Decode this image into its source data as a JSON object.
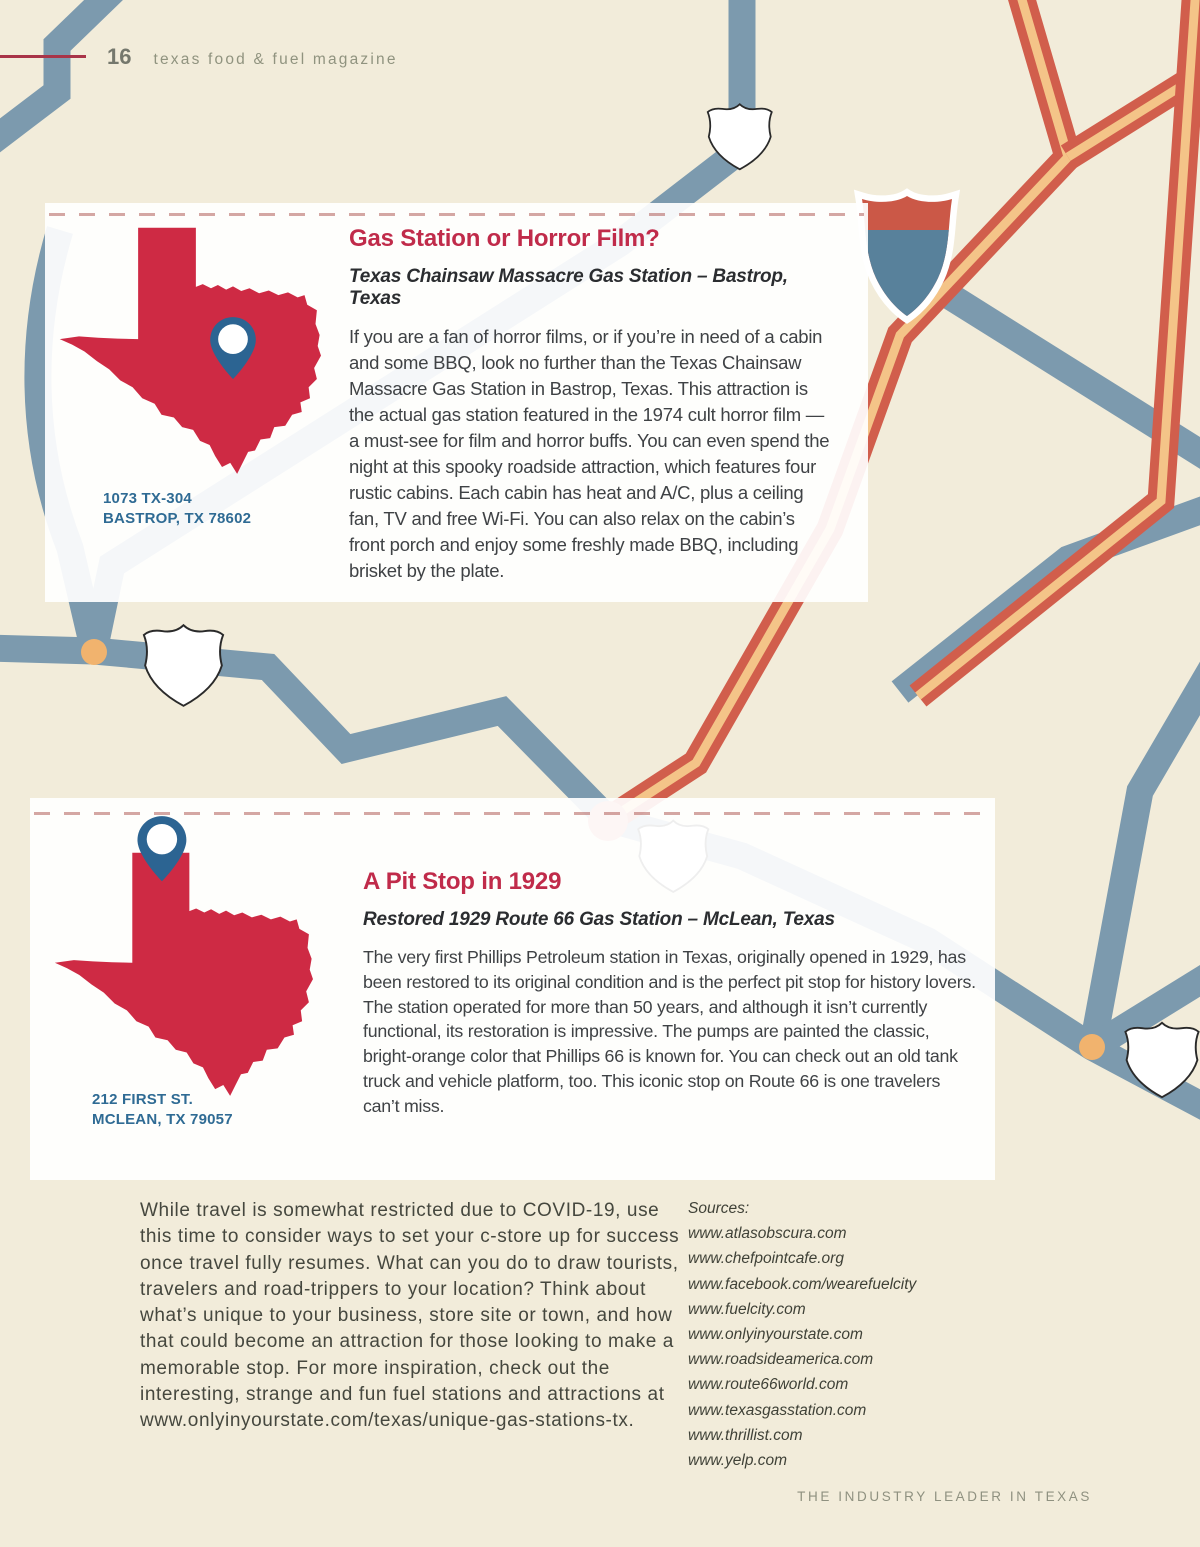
{
  "page": {
    "number": "16",
    "magazine": "texas food & fuel magazine",
    "footer": "THE INDUSTRY LEADER IN TEXAS"
  },
  "cards": [
    {
      "title": "Gas Station or Horror Film?",
      "subtitle": "Texas Chainsaw Massacre Gas Station – Bastrop, Texas",
      "address_line1": "1073 TX-304",
      "address_line2": "BASTROP, TX 78602",
      "body": "If you are a fan of horror films, or if you’re in need of a cabin and some BBQ, look no further than the Texas Chainsaw Massacre Gas Station in Bastrop, Texas. This attraction is the actual gas station featured in the 1974 cult horror film — a must-see for film and horror buffs. You can even spend the night at this spooky roadside attraction, which features four rustic cabins. Each cabin has heat and A/C, plus a ceiling fan, TV and free Wi-Fi. You can also relax on the cabin’s front porch and enjoy some freshly made BBQ, including brisket by the plate."
    },
    {
      "title": "A Pit Stop in 1929",
      "subtitle": "Restored 1929 Route 66 Gas Station – McLean, Texas",
      "address_line1": "212 FIRST ST.",
      "address_line2": "MCLEAN, TX 79057",
      "body": "The very first Phillips Petroleum station in Texas, originally opened in 1929, has been restored to its original condition and is the perfect pit stop for history lovers. The station operated for more than 50 years, and although it isn’t currently functional, its restoration is impressive. The pumps are painted the classic, bright-orange color that Phillips 66 is known for. You can check out an old tank truck and vehicle platform, too. This iconic stop on Route 66 is one travelers can’t miss."
    }
  ],
  "outro": {
    "text": "While travel is somewhat restricted due to COVID-19, use this time to consider ways to set your c-store up for success once travel fully resumes. What can you do to draw tourists, travelers and road-trippers to your location? Think about what’s unique to your business, store site or town, and how that could become an attraction for those looking to make a memorable stop. For more inspiration, check out the interesting, strange and fun fuel stations and attractions at www.onlyinyourstate.com/texas/unique-gas-stations-tx."
  },
  "sources": {
    "label": "Sources:",
    "items": [
      "www.atlasobscura.com",
      "www.chefpointcafe.org",
      "www.facebook.com/wearefuelcity",
      "www.fuelcity.com",
      "www.onlyinyourstate.com",
      "www.roadsideamerica.com",
      "www.route66world.com",
      "www.texasgasstation.com",
      "www.thrillist.com",
      "www.yelp.com"
    ]
  },
  "colors": {
    "background": "#f2ecda",
    "accent_red": "#c02b4a",
    "texas_red": "#ce2a44",
    "pin_blue": "#2c6492",
    "address_blue": "#2f6b94",
    "road_blue": "#7c9aae",
    "road_red": "#d15e4c",
    "road_stripe": "#f4c488",
    "junction_orange": "#f1b36e"
  }
}
